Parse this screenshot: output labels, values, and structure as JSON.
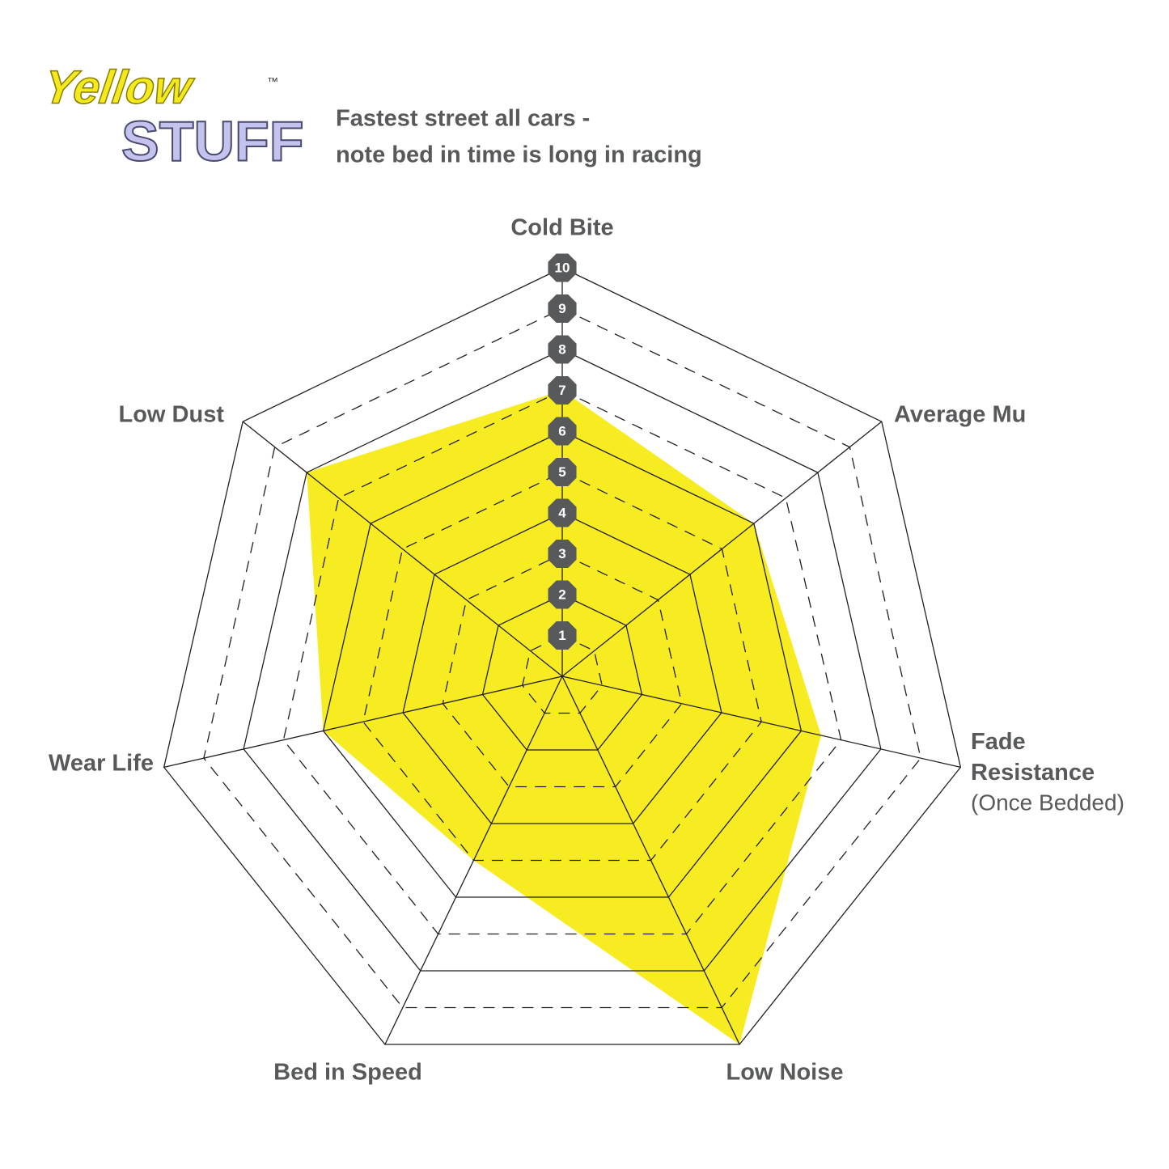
{
  "logo": {
    "line1": "Yellow",
    "line2": "STUFF",
    "mark": "™"
  },
  "chart_data": {
    "type": "radar",
    "title": [
      "Fastest street all cars -",
      "note bed in time is long in racing"
    ],
    "categories": [
      "Cold Bite",
      "Average Mu",
      "Fade Resistance",
      "Low Noise",
      "Bed in Speed",
      "Wear Life",
      "Low Dust"
    ],
    "category_notes": [
      null,
      null,
      "(Once Bedded)",
      null,
      null,
      null,
      null
    ],
    "values": [
      7,
      6,
      6.5,
      10,
      5,
      6,
      8
    ],
    "color": "#f7ec22",
    "rlim": [
      0,
      10
    ],
    "rticks": [
      1,
      2,
      3,
      4,
      5,
      6,
      7,
      8,
      9,
      10
    ],
    "grid": true
  }
}
